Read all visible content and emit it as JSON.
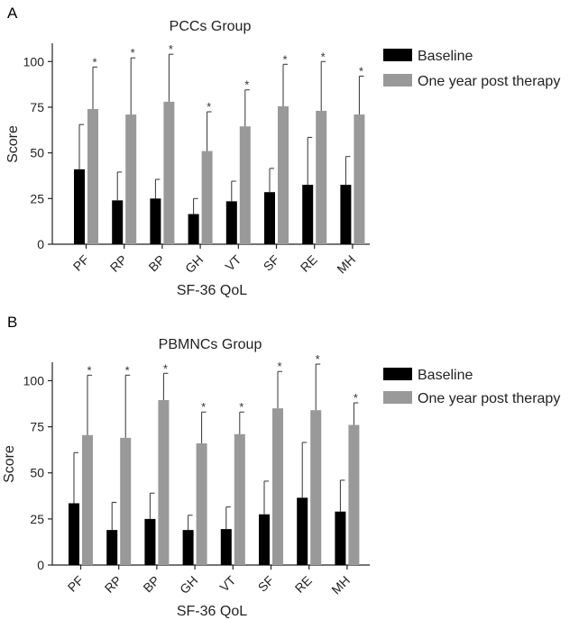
{
  "chart_data": [
    {
      "type": "bar",
      "panel": "A",
      "title": "PCCs Group",
      "xlabel": "SF-36 QoL",
      "ylabel": "Score",
      "ylim": [
        0,
        110
      ],
      "yticks": [
        0,
        25,
        50,
        75,
        100
      ],
      "categories": [
        "PF",
        "RP",
        "BP",
        "GH",
        "VT",
        "SF",
        "RE",
        "MH"
      ],
      "series": [
        {
          "name": "Baseline",
          "color": "#000000",
          "values": [
            41,
            24,
            25,
            16.5,
            23.5,
            28.5,
            32.5,
            32.5
          ],
          "errors": [
            24.5,
            15.5,
            10.5,
            8.5,
            11,
            13,
            26,
            15.5
          ]
        },
        {
          "name": "One year post therapy",
          "color": "#999999",
          "values": [
            74,
            71,
            78,
            51,
            64.5,
            75.5,
            73,
            71
          ],
          "errors": [
            23,
            31,
            26,
            21.5,
            20,
            23,
            27,
            21
          ]
        }
      ],
      "significance_marks": [
        "*",
        "*",
        "*",
        "*",
        "*",
        "*",
        "*",
        "*"
      ],
      "legend": [
        "Baseline",
        "One year post therapy"
      ]
    },
    {
      "type": "bar",
      "panel": "B",
      "title": "PBMNCs Group",
      "xlabel": "SF-36 QoL",
      "ylabel": "Score",
      "ylim": [
        0,
        110
      ],
      "yticks": [
        0,
        25,
        50,
        75,
        100
      ],
      "categories": [
        "PF",
        "RP",
        "BP",
        "GH",
        "VT",
        "SF",
        "RE",
        "MH"
      ],
      "series": [
        {
          "name": "Baseline",
          "color": "#000000",
          "values": [
            33.5,
            19,
            25,
            19,
            19.5,
            27.5,
            36.5,
            29
          ],
          "errors": [
            27.5,
            15,
            14,
            8,
            12,
            18,
            30,
            17
          ]
        },
        {
          "name": "One year post therapy",
          "color": "#999999",
          "values": [
            70.5,
            69,
            89.5,
            66,
            71,
            85,
            84,
            76
          ],
          "errors": [
            32.5,
            34,
            14.5,
            17,
            12,
            20,
            25,
            12
          ]
        }
      ],
      "significance_marks": [
        "*",
        "*",
        "*",
        "*",
        "*",
        "*",
        "*",
        "*"
      ],
      "legend": [
        "Baseline",
        "One year post therapy"
      ]
    }
  ]
}
